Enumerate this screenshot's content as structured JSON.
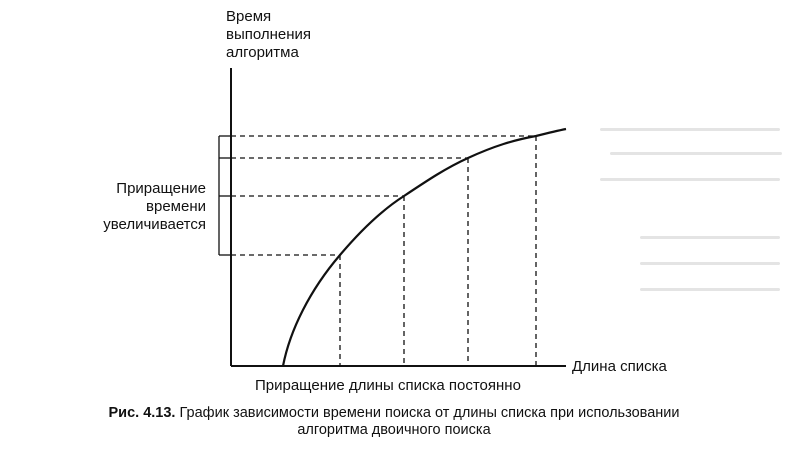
{
  "diagram": {
    "y_axis_label_lines": [
      "Время",
      "выполнения",
      "алгоритма"
    ],
    "x_axis_label": "Длина списка",
    "time_increment_label_lines": [
      "Приращение",
      "времени",
      "увеличивается"
    ],
    "length_increment_label": "Приращение длины списка постоянно",
    "curve": "logarithmic"
  },
  "caption": {
    "number": "Рис. 4.13.",
    "line1": "График зависимости времени поиска от длины списка при использовании",
    "line2": "алгоритма двоичного поиска"
  }
}
